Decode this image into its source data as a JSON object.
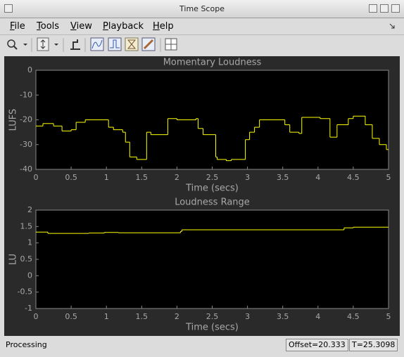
{
  "window": {
    "title": "Time Scope"
  },
  "menu": [
    "File",
    "Tools",
    "View",
    "Playback",
    "Help"
  ],
  "chart_data": [
    {
      "type": "line",
      "step": true,
      "title": "Momentary Loudness",
      "x_label": "Time (secs)",
      "y_label": "LUFS",
      "x": [
        0,
        0.1,
        0.25,
        0.37,
        0.5,
        0.57,
        0.7,
        1.03,
        1.1,
        1.23,
        1.27,
        1.33,
        1.43,
        1.57,
        1.63,
        1.87,
        2.0,
        2.27,
        2.3,
        2.37,
        2.55,
        2.57,
        2.7,
        2.77,
        2.97,
        3.03,
        3.1,
        3.17,
        3.53,
        3.6,
        3.73,
        3.77,
        4.03,
        4.17,
        4.27,
        4.43,
        4.5,
        4.67,
        4.77,
        4.87,
        4.97
      ],
      "series": [
        {
          "color": "#ffff00",
          "values": [
            -22.5,
            -21.5,
            -22.5,
            -24.5,
            -24,
            -21,
            -20,
            -23,
            -24,
            -25,
            -29,
            -35,
            -36,
            -25,
            -26,
            -19.5,
            -20,
            -19.5,
            -23.5,
            -26,
            -35,
            -36,
            -36.5,
            -36,
            -28,
            -25,
            -23,
            -20,
            -22,
            -25,
            -25.5,
            -19,
            -19.5,
            -27,
            -22,
            -19.5,
            -18.5,
            -22,
            -27.5,
            -30,
            -32
          ]
        }
      ],
      "xlim": [
        0,
        5
      ],
      "ylim": [
        -40,
        0
      ],
      "xticks": [
        0,
        0.5,
        1,
        1.5,
        2,
        2.5,
        3,
        3.5,
        4,
        4.5,
        5
      ],
      "yticks": [
        -40,
        -30,
        -20,
        -10,
        0
      ]
    },
    {
      "type": "line",
      "step": true,
      "title": "Loudness Range",
      "x_label": "Time (secs)",
      "y_label": "LU",
      "x": [
        0,
        0.17,
        0.75,
        0.97,
        1.17,
        2.05,
        2.07,
        4.37,
        4.5
      ],
      "series": [
        {
          "color": "#ffff00",
          "values": [
            1.33,
            1.29,
            1.3,
            1.32,
            1.31,
            1.35,
            1.4,
            1.46,
            1.48
          ]
        }
      ],
      "xlim": [
        0,
        5
      ],
      "ylim": [
        -1,
        2
      ],
      "xticks": [
        0,
        0.5,
        1,
        1.5,
        2,
        2.5,
        3,
        3.5,
        4,
        4.5,
        5
      ],
      "yticks": [
        -1,
        -0.5,
        0,
        0.5,
        1,
        1.5,
        2
      ]
    }
  ],
  "status": {
    "state": "Processing",
    "offset": "Offset=20.333",
    "time": "T=25.3098"
  }
}
